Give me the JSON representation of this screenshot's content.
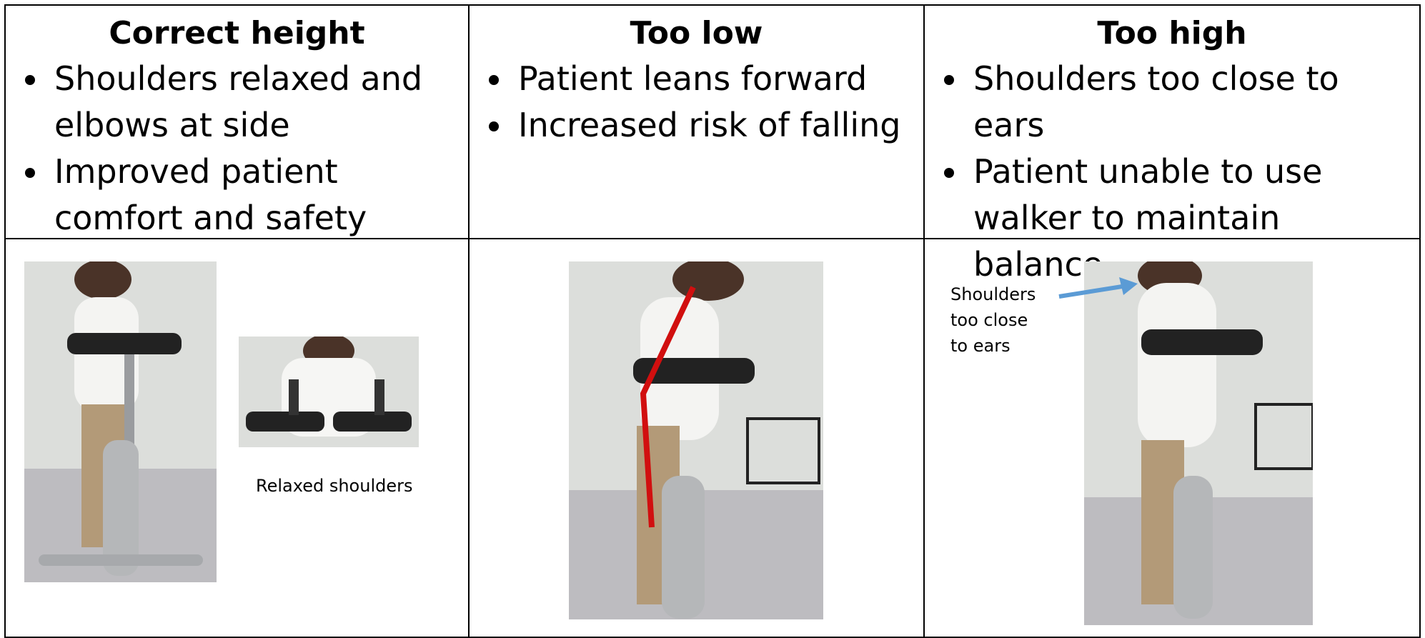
{
  "columns": [
    {
      "heading": "Correct height",
      "bullets": [
        "Shoulders relaxed and elbows at side",
        "Improved patient comfort and safety"
      ]
    },
    {
      "heading": "Too low",
      "bullets": [
        "Patient leans forward",
        "Increased risk of falling"
      ]
    },
    {
      "heading": "Too high",
      "bullets": [
        "Shoulders too close to ears",
        "Patient unable to use walker to maintain balance"
      ]
    }
  ],
  "captions": {
    "relaxed": "Relaxed shoulders",
    "too_high": "Shoulders too close to ears"
  }
}
